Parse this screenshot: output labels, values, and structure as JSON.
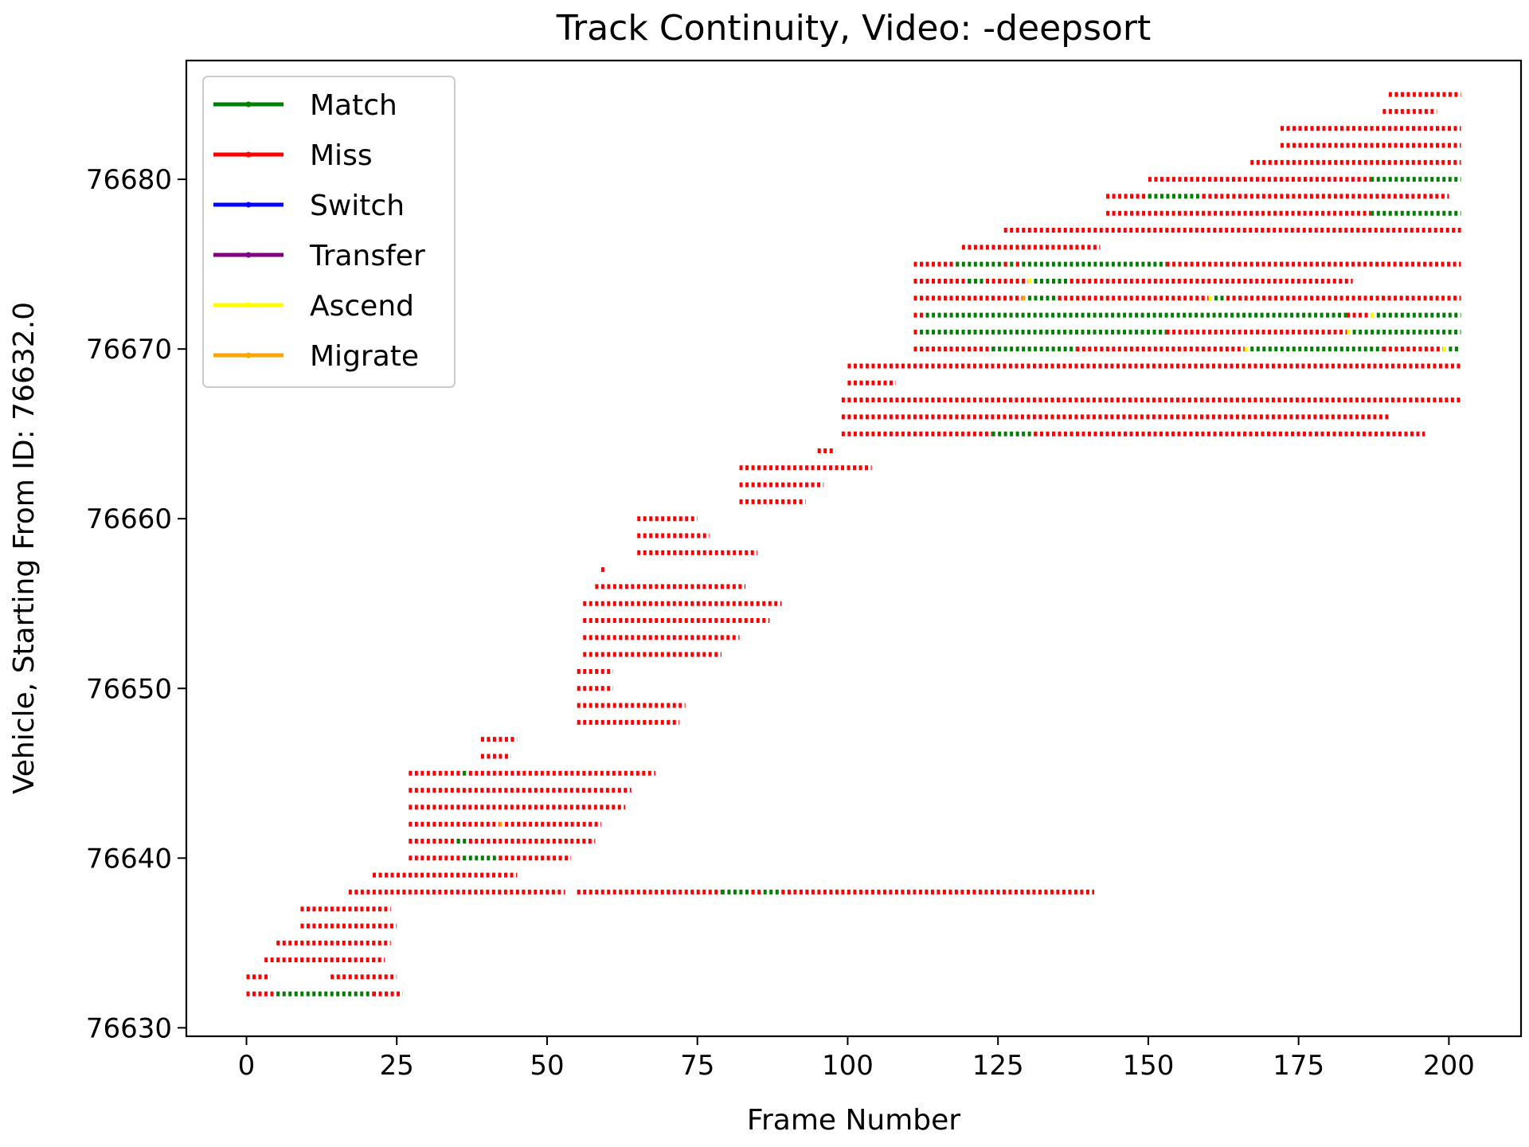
{
  "chart_data": {
    "type": "line",
    "title": "Track Continuity, Video: -deepsort",
    "xlabel": "Frame Number",
    "ylabel": "Vehicle, Starting From ID: 76632.0",
    "xlim": [
      -10,
      212
    ],
    "ylim": [
      76629.5,
      76687
    ],
    "xticks": [
      0,
      25,
      50,
      75,
      100,
      125,
      150,
      175,
      200
    ],
    "yticks": [
      76630,
      76640,
      76650,
      76660,
      76670,
      76680
    ],
    "grid": false,
    "legend_position": "top-left",
    "legend": [
      {
        "name": "Match",
        "color": "#008000"
      },
      {
        "name": "Miss",
        "color": "#ff0000"
      },
      {
        "name": "Switch",
        "color": "#0000ff"
      },
      {
        "name": "Transfer",
        "color": "#800080"
      },
      {
        "name": "Ascend",
        "color": "#ffff00"
      },
      {
        "name": "Migrate",
        "color": "#ffa500"
      }
    ],
    "tracks": [
      {
        "id": 76632,
        "segments": [
          [
            0,
            5,
            "Miss"
          ],
          [
            5,
            21,
            "Match"
          ],
          [
            21,
            26,
            "Miss"
          ]
        ]
      },
      {
        "id": 76633,
        "segments": [
          [
            0,
            4,
            "Miss"
          ]
        ]
      },
      {
        "id": 76633,
        "segments": [
          [
            14,
            25,
            "Miss"
          ]
        ]
      },
      {
        "id": 76634,
        "segments": [
          [
            3,
            23,
            "Miss"
          ]
        ]
      },
      {
        "id": 76635,
        "segments": [
          [
            5,
            24,
            "Miss"
          ]
        ]
      },
      {
        "id": 76636,
        "segments": [
          [
            9,
            25,
            "Miss"
          ]
        ]
      },
      {
        "id": 76637,
        "segments": [
          [
            9,
            24,
            "Miss"
          ]
        ]
      },
      {
        "id": 76638,
        "segments": [
          [
            17,
            53,
            "Miss"
          ]
        ]
      },
      {
        "id": 76638,
        "segments": [
          [
            55,
            79,
            "Miss"
          ],
          [
            79,
            84,
            "Match"
          ],
          [
            84,
            86,
            "Miss"
          ],
          [
            86,
            89,
            "Match"
          ],
          [
            89,
            141,
            "Miss"
          ]
        ]
      },
      {
        "id": 76639,
        "segments": [
          [
            21,
            45,
            "Miss"
          ]
        ]
      },
      {
        "id": 76640,
        "segments": [
          [
            27,
            36,
            "Miss"
          ],
          [
            36,
            42,
            "Match"
          ],
          [
            42,
            54,
            "Miss"
          ]
        ]
      },
      {
        "id": 76641,
        "segments": [
          [
            27,
            35,
            "Miss"
          ],
          [
            35,
            37,
            "Match"
          ],
          [
            37,
            58,
            "Miss"
          ]
        ]
      },
      {
        "id": 76642,
        "segments": [
          [
            27,
            42,
            "Miss"
          ],
          [
            42,
            43,
            "Migrate"
          ],
          [
            43,
            59,
            "Miss"
          ]
        ]
      },
      {
        "id": 76643,
        "segments": [
          [
            27,
            63,
            "Miss"
          ]
        ]
      },
      {
        "id": 76644,
        "segments": [
          [
            27,
            64,
            "Miss"
          ]
        ]
      },
      {
        "id": 76645,
        "segments": [
          [
            27,
            36,
            "Miss"
          ],
          [
            36,
            37,
            "Match"
          ],
          [
            37,
            68,
            "Miss"
          ]
        ]
      },
      {
        "id": 76646,
        "segments": [
          [
            39,
            44,
            "Miss"
          ]
        ]
      },
      {
        "id": 76647,
        "segments": [
          [
            39,
            45,
            "Miss"
          ]
        ]
      },
      {
        "id": 76648,
        "segments": [
          [
            55,
            72,
            "Miss"
          ]
        ]
      },
      {
        "id": 76649,
        "segments": [
          [
            55,
            73,
            "Miss"
          ]
        ]
      },
      {
        "id": 76650,
        "segments": [
          [
            55,
            61,
            "Miss"
          ]
        ]
      },
      {
        "id": 76651,
        "segments": [
          [
            55,
            61,
            "Miss"
          ]
        ]
      },
      {
        "id": 76652,
        "segments": [
          [
            56,
            79,
            "Miss"
          ]
        ]
      },
      {
        "id": 76653,
        "segments": [
          [
            56,
            82,
            "Miss"
          ]
        ]
      },
      {
        "id": 76654,
        "segments": [
          [
            56,
            87,
            "Miss"
          ]
        ]
      },
      {
        "id": 76655,
        "segments": [
          [
            56,
            89,
            "Miss"
          ]
        ]
      },
      {
        "id": 76656,
        "segments": [
          [
            58,
            83,
            "Miss"
          ]
        ]
      },
      {
        "id": 76657,
        "segments": [
          [
            59,
            60,
            "Miss"
          ]
        ]
      },
      {
        "id": 76658,
        "segments": [
          [
            65,
            85,
            "Miss"
          ]
        ]
      },
      {
        "id": 76659,
        "segments": [
          [
            65,
            77,
            "Miss"
          ]
        ]
      },
      {
        "id": 76660,
        "segments": [
          [
            65,
            75,
            "Miss"
          ]
        ]
      },
      {
        "id": 76661,
        "segments": [
          [
            82,
            93,
            "Miss"
          ]
        ]
      },
      {
        "id": 76662,
        "segments": [
          [
            82,
            96,
            "Miss"
          ]
        ]
      },
      {
        "id": 76663,
        "segments": [
          [
            82,
            104,
            "Miss"
          ]
        ]
      },
      {
        "id": 76664,
        "segments": [
          [
            95,
            98,
            "Miss"
          ]
        ]
      },
      {
        "id": 76665,
        "segments": [
          [
            99,
            124,
            "Miss"
          ],
          [
            124,
            131,
            "Match"
          ],
          [
            131,
            196,
            "Miss"
          ]
        ]
      },
      {
        "id": 76666,
        "segments": [
          [
            99,
            190,
            "Miss"
          ]
        ]
      },
      {
        "id": 76667,
        "segments": [
          [
            99,
            202,
            "Miss"
          ]
        ]
      },
      {
        "id": 76668,
        "segments": [
          [
            100,
            108,
            "Miss"
          ]
        ]
      },
      {
        "id": 76669,
        "segments": [
          [
            100,
            202,
            "Miss"
          ]
        ]
      },
      {
        "id": 76670,
        "segments": [
          [
            111,
            124,
            "Miss"
          ],
          [
            124,
            138,
            "Match"
          ],
          [
            138,
            166,
            "Miss"
          ],
          [
            166,
            167,
            "Ascend"
          ],
          [
            167,
            189,
            "Match"
          ],
          [
            189,
            199,
            "Miss"
          ],
          [
            199,
            200,
            "Ascend"
          ],
          [
            200,
            202,
            "Match"
          ]
        ]
      },
      {
        "id": 76671,
        "segments": [
          [
            111,
            112,
            "Miss"
          ],
          [
            112,
            153,
            "Match"
          ],
          [
            153,
            183,
            "Miss"
          ],
          [
            183,
            184,
            "Ascend"
          ],
          [
            184,
            202,
            "Match"
          ]
        ]
      },
      {
        "id": 76672,
        "segments": [
          [
            111,
            113,
            "Miss"
          ],
          [
            113,
            183,
            "Match"
          ],
          [
            183,
            187,
            "Miss"
          ],
          [
            187,
            188,
            "Ascend"
          ],
          [
            188,
            202,
            "Match"
          ]
        ]
      },
      {
        "id": 76673,
        "segments": [
          [
            111,
            129,
            "Miss"
          ],
          [
            129,
            130,
            "Migrate"
          ],
          [
            130,
            135,
            "Match"
          ],
          [
            135,
            160,
            "Miss"
          ],
          [
            160,
            161,
            "Ascend"
          ],
          [
            161,
            163,
            "Match"
          ],
          [
            163,
            202,
            "Miss"
          ]
        ]
      },
      {
        "id": 76674,
        "segments": [
          [
            111,
            120,
            "Miss"
          ],
          [
            120,
            123,
            "Match"
          ],
          [
            123,
            130,
            "Miss"
          ],
          [
            130,
            131,
            "Ascend"
          ],
          [
            131,
            137,
            "Match"
          ],
          [
            137,
            184,
            "Miss"
          ]
        ]
      },
      {
        "id": 76675,
        "segments": [
          [
            111,
            118,
            "Miss"
          ],
          [
            118,
            126,
            "Match"
          ],
          [
            126,
            127,
            "Miss"
          ],
          [
            127,
            128,
            "Match"
          ],
          [
            128,
            129,
            "Miss"
          ],
          [
            129,
            153,
            "Match"
          ],
          [
            153,
            202,
            "Miss"
          ]
        ]
      },
      {
        "id": 76676,
        "segments": [
          [
            119,
            142,
            "Miss"
          ]
        ]
      },
      {
        "id": 76677,
        "segments": [
          [
            126,
            202,
            "Miss"
          ]
        ]
      },
      {
        "id": 76678,
        "segments": [
          [
            143,
            187,
            "Miss"
          ],
          [
            187,
            202,
            "Match"
          ]
        ]
      },
      {
        "id": 76679,
        "segments": [
          [
            143,
            150,
            "Miss"
          ],
          [
            150,
            159,
            "Match"
          ],
          [
            159,
            200,
            "Miss"
          ]
        ]
      },
      {
        "id": 76680,
        "segments": [
          [
            150,
            187,
            "Miss"
          ],
          [
            187,
            202,
            "Match"
          ]
        ]
      },
      {
        "id": 76681,
        "segments": [
          [
            167,
            202,
            "Miss"
          ]
        ]
      },
      {
        "id": 76682,
        "segments": [
          [
            172,
            202,
            "Miss"
          ]
        ]
      },
      {
        "id": 76683,
        "segments": [
          [
            172,
            202,
            "Miss"
          ]
        ]
      },
      {
        "id": 76684,
        "segments": [
          [
            189,
            198,
            "Miss"
          ]
        ]
      },
      {
        "id": 76685,
        "segments": [
          [
            190,
            202,
            "Miss"
          ]
        ]
      }
    ]
  }
}
